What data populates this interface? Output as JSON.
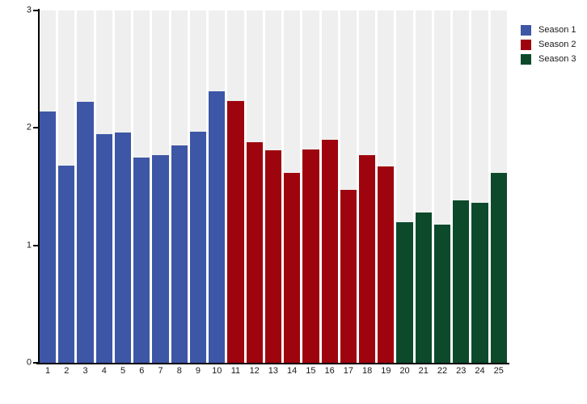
{
  "chart_data": {
    "type": "bar",
    "title": "",
    "categories": [
      "1",
      "2",
      "3",
      "4",
      "5",
      "6",
      "7",
      "8",
      "9",
      "10",
      "11",
      "12",
      "13",
      "14",
      "15",
      "16",
      "17",
      "18",
      "19",
      "20",
      "21",
      "22",
      "23",
      "24",
      "25"
    ],
    "series": [
      {
        "name": "Season 1",
        "color": "#3D56A6",
        "values": [
          2.14,
          1.68,
          2.22,
          1.95,
          1.96,
          1.75,
          1.77,
          1.85,
          1.97,
          2.31
        ]
      },
      {
        "name": "Season 2",
        "color": "#9E040D",
        "values": [
          2.23,
          1.88,
          1.81,
          1.62,
          1.82,
          1.9,
          1.47,
          1.77,
          1.67
        ]
      },
      {
        "name": "Season 3",
        "color": "#0C4A2B",
        "values": [
          1.2,
          1.28,
          1.18,
          1.38,
          1.36,
          1.62
        ]
      }
    ],
    "xlabel": "",
    "ylabel": "",
    "ylim": [
      0,
      3
    ],
    "yticks": [
      3,
      2,
      1,
      0
    ],
    "ytick_labels": [
      "3",
      "2",
      "1",
      "0"
    ],
    "legend_position": "top-right",
    "grid": false,
    "styles": {
      "column_band_color": "#EFEFEF",
      "column_gap_color": "#FFFFFF",
      "axis_color": "#000000",
      "text_color": "#1A1A1A",
      "background_color": "#FFFFFF"
    }
  }
}
